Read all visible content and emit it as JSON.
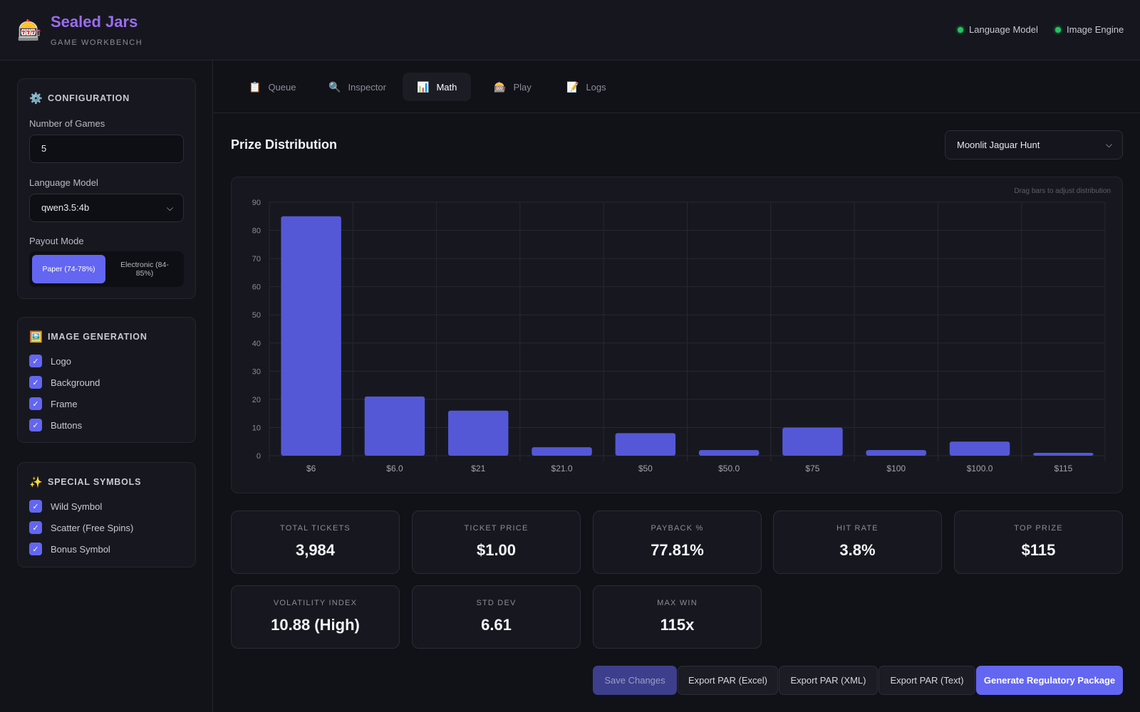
{
  "header": {
    "logo_icon": "slot-machine-icon",
    "title": "Sealed Jars",
    "subtitle": "GAME WORKBENCH",
    "status": [
      {
        "label": "Language Model",
        "color": "#22c55e"
      },
      {
        "label": "Image Engine",
        "color": "#22c55e"
      }
    ]
  },
  "sidebar": {
    "configuration": {
      "title": "CONFIGURATION",
      "icon": "gear-icon",
      "num_games_label": "Number of Games",
      "num_games_value": "5",
      "language_model_label": "Language Model",
      "language_model_value": "qwen3.5:4b",
      "payout_mode_label": "Payout Mode",
      "payout_modes": [
        "Paper (74-78%)",
        "Electronic (84-85%)"
      ],
      "payout_mode_selected": "Paper (74-78%)"
    },
    "image_generation": {
      "title": "IMAGE GENERATION",
      "icon": "image-icon",
      "items": [
        {
          "label": "Logo",
          "checked": true
        },
        {
          "label": "Background",
          "checked": true
        },
        {
          "label": "Frame",
          "checked": true
        },
        {
          "label": "Buttons",
          "checked": true
        }
      ]
    },
    "special_symbols": {
      "title": "SPECIAL SYMBOLS",
      "icon": "sparkles-icon",
      "items": [
        {
          "label": "Wild Symbol",
          "checked": true
        },
        {
          "label": "Scatter (Free Spins)",
          "checked": true
        },
        {
          "label": "Bonus Symbol",
          "checked": true
        }
      ]
    }
  },
  "tabs": [
    {
      "label": "Queue",
      "icon": "clipboard-icon",
      "active": false
    },
    {
      "label": "Inspector",
      "icon": "magnifier-icon",
      "active": false
    },
    {
      "label": "Math",
      "icon": "bar-chart-icon",
      "active": true
    },
    {
      "label": "Play",
      "icon": "slot-machine-icon",
      "active": false
    },
    {
      "label": "Logs",
      "icon": "memo-icon",
      "active": false
    }
  ],
  "main": {
    "section_title": "Prize Distribution",
    "game_select_value": "Moonlit Jaguar Hunt",
    "chart_hint": "Drag bars to adjust distribution",
    "stats": [
      {
        "label": "TOTAL TICKETS",
        "value": "3,984"
      },
      {
        "label": "TICKET PRICE",
        "value": "$1.00"
      },
      {
        "label": "PAYBACK %",
        "value": "77.81%"
      },
      {
        "label": "HIT RATE",
        "value": "3.8%"
      },
      {
        "label": "TOP PRIZE",
        "value": "$115"
      },
      {
        "label": "VOLATILITY INDEX",
        "value": "10.88 (High)"
      },
      {
        "label": "STD DEV",
        "value": "6.61"
      },
      {
        "label": "MAX WIN",
        "value": "115x"
      }
    ],
    "buttons": {
      "save": "Save Changes",
      "export_excel": "Export PAR (Excel)",
      "export_xml": "Export PAR (XML)",
      "export_text": "Export PAR (Text)",
      "generate": "Generate Regulatory Package"
    }
  },
  "chart_data": {
    "type": "bar",
    "categories": [
      "$6",
      "$6.0",
      "$21",
      "$21.0",
      "$50",
      "$50.0",
      "$75",
      "$100",
      "$100.0",
      "$115"
    ],
    "values": [
      85,
      21,
      16,
      3,
      8,
      2,
      10,
      2,
      5,
      1
    ],
    "ylim": [
      0,
      90
    ],
    "yticks": [
      0,
      10,
      20,
      30,
      40,
      50,
      60,
      70,
      80,
      90
    ],
    "color": "#5558d6",
    "grid": true
  }
}
